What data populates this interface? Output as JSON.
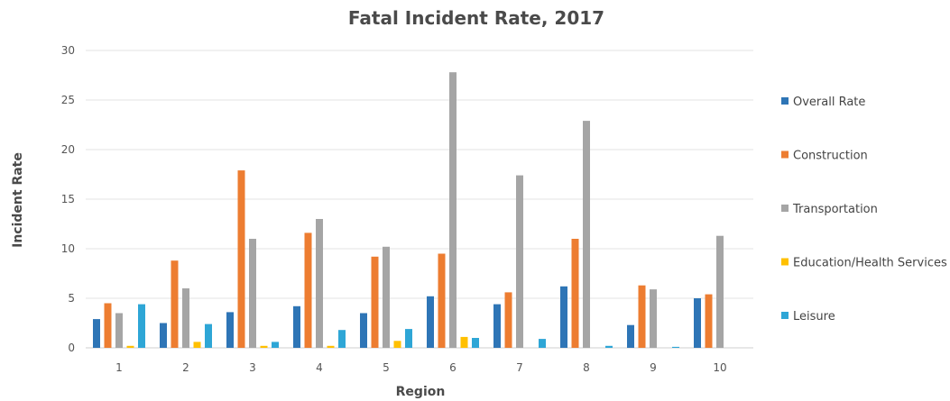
{
  "chart_data": {
    "type": "bar",
    "title": "Fatal Incident Rate, 2017",
    "xlabel": "Region",
    "ylabel": "Incident Rate",
    "categories": [
      "1",
      "2",
      "3",
      "4",
      "5",
      "6",
      "7",
      "8",
      "9",
      "10"
    ],
    "ylim": [
      0,
      30
    ],
    "yticks": [
      0,
      5,
      10,
      15,
      20,
      25,
      30
    ],
    "grid": true,
    "legend_position": "right",
    "series": [
      {
        "name": "Overall Rate",
        "color": "#2e75b6",
        "values": [
          2.9,
          2.5,
          3.6,
          4.2,
          3.5,
          5.2,
          4.4,
          6.2,
          2.3,
          5.0
        ]
      },
      {
        "name": "Construction",
        "color": "#ed7d31",
        "values": [
          4.5,
          8.8,
          17.9,
          11.6,
          9.2,
          9.5,
          5.6,
          11.0,
          6.3,
          5.4
        ]
      },
      {
        "name": "Transportation",
        "color": "#a5a5a5",
        "values": [
          3.5,
          6.0,
          11.0,
          13.0,
          10.2,
          27.8,
          17.4,
          22.9,
          5.9,
          11.3
        ]
      },
      {
        "name": "Education/Health Services",
        "color": "#ffc000",
        "values": [
          0.2,
          0.6,
          0.2,
          0.2,
          0.7,
          1.1,
          0,
          0,
          0,
          0
        ]
      },
      {
        "name": "Leisure",
        "color": "#2ea6d6",
        "values": [
          4.4,
          2.4,
          0.6,
          1.8,
          1.9,
          1.0,
          0.9,
          0.2,
          0.1,
          0
        ]
      }
    ]
  }
}
